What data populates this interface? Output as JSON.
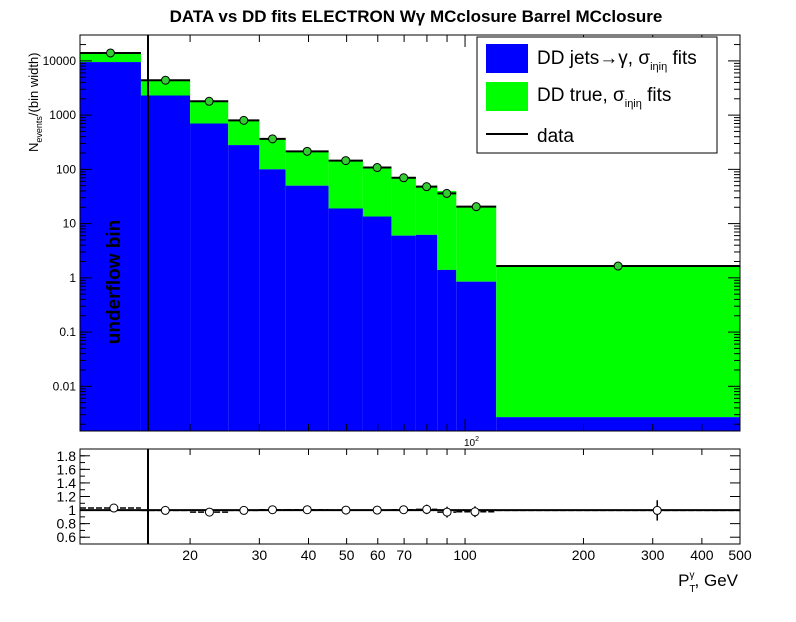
{
  "title": "DATA vs DD fits ELECTRON Wγ  MCclosure Barrel  MCclosure",
  "colors": {
    "jets": "#0000ff",
    "true": "#00ff00",
    "data": "#000000",
    "marker": "#33cc33"
  },
  "chart_data": [
    {
      "type": "bar",
      "stacked": true,
      "log_x": true,
      "log_y": true,
      "ylabel": "N_events/(bin width)",
      "ylabel_main": "N",
      "ylabel_sub": "events",
      "ylabel_tail": "/(bin width)",
      "xlim": [
        10.5,
        500
      ],
      "ylim": [
        0.0015,
        30000
      ],
      "x_tick_label": "10²",
      "x_tick_label_base": "10",
      "x_tick_label_exp": "2",
      "y_ticks": [
        {
          "v": 10000,
          "label": "10000"
        },
        {
          "v": 1000,
          "label": "1000"
        },
        {
          "v": 100,
          "label": "100"
        },
        {
          "v": 10,
          "label": "10"
        },
        {
          "v": 1,
          "label": "1"
        },
        {
          "v": 0.1,
          "label": "0.1"
        },
        {
          "v": 0.01,
          "label": "0.01"
        }
      ],
      "annotation": "underflow bin",
      "bins": [
        {
          "lo": 10.5,
          "hi": 15,
          "jets": 9500,
          "total": 13500,
          "data": 14000
        },
        {
          "lo": 15,
          "hi": 20,
          "jets": 2300,
          "total": 4500,
          "data": 4400
        },
        {
          "lo": 20,
          "hi": 25,
          "jets": 700,
          "total": 1850,
          "data": 1800
        },
        {
          "lo": 25,
          "hi": 30,
          "jets": 280,
          "total": 820,
          "data": 800
        },
        {
          "lo": 30,
          "hi": 35,
          "jets": 100,
          "total": 370,
          "data": 365
        },
        {
          "lo": 35,
          "hi": 45,
          "jets": 50,
          "total": 210,
          "data": 215
        },
        {
          "lo": 45,
          "hi": 55,
          "jets": 19,
          "total": 145,
          "data": 145
        },
        {
          "lo": 55,
          "hi": 65,
          "jets": 13.5,
          "total": 108,
          "data": 108
        },
        {
          "lo": 65,
          "hi": 75,
          "jets": 6,
          "total": 72,
          "data": 70
        },
        {
          "lo": 75,
          "hi": 85,
          "jets": 6.2,
          "total": 50,
          "data": 48
        },
        {
          "lo": 85,
          "hi": 95,
          "jets": 1.4,
          "total": 40,
          "data": 36
        },
        {
          "lo": 95,
          "hi": 120,
          "jets": 0.85,
          "total": 21,
          "data": 20.5
        },
        {
          "lo": 120,
          "hi": 500,
          "jets": 0.0027,
          "total": 1.65,
          "data": 1.65
        }
      ],
      "legend": [
        {
          "key": "jets",
          "label": "DD jets→γ, σ",
          "sub": "iηiη",
          "tail": " fits"
        },
        {
          "key": "true",
          "label": "DD true,  σ",
          "sub": "iηiη",
          "tail": " fits"
        },
        {
          "key": "data",
          "label": "data"
        }
      ],
      "legend_position": "top-right"
    },
    {
      "type": "scatter",
      "log_x": true,
      "xlim": [
        10.5,
        500
      ],
      "ylim": [
        0.5,
        1.9
      ],
      "xlabel": "P_T^γ, GeV",
      "xlabel_main": "P",
      "xlabel_sub": "T",
      "xlabel_sup": "γ",
      "xlabel_tail": ", GeV",
      "x_ticks": [
        {
          "v": 20,
          "label": "20"
        },
        {
          "v": 30,
          "label": "30"
        },
        {
          "v": 40,
          "label": "40"
        },
        {
          "v": 50,
          "label": "50"
        },
        {
          "v": 60,
          "label": "60"
        },
        {
          "v": 70,
          "label": "70"
        },
        {
          "v": 100,
          "label": "100"
        },
        {
          "v": 200,
          "label": "200"
        },
        {
          "v": 300,
          "label": "300"
        },
        {
          "v": 400,
          "label": "400"
        },
        {
          "v": 500,
          "label": "500"
        }
      ],
      "y_ticks": [
        {
          "v": 0.6,
          "label": "0.6"
        },
        {
          "v": 0.8,
          "label": "0.8"
        },
        {
          "v": 1.0,
          "label": "1"
        },
        {
          "v": 1.2,
          "label": "1.2"
        },
        {
          "v": 1.4,
          "label": "1.4"
        },
        {
          "v": 1.6,
          "label": "1.6"
        },
        {
          "v": 1.8,
          "label": "1.8"
        }
      ],
      "reference_line": 1.0,
      "points": [
        {
          "lo": 10.5,
          "hi": 15,
          "x": 12.8,
          "y": 1.03,
          "err": 0.01
        },
        {
          "lo": 15,
          "hi": 20,
          "x": 17.3,
          "y": 0.995,
          "err": 0.02
        },
        {
          "lo": 20,
          "hi": 25,
          "x": 22.4,
          "y": 0.97,
          "err": 0.03
        },
        {
          "lo": 25,
          "hi": 30,
          "x": 27.4,
          "y": 0.995,
          "err": 0.035
        },
        {
          "lo": 30,
          "hi": 35,
          "x": 32.4,
          "y": 1.005,
          "err": 0.04
        },
        {
          "lo": 35,
          "hi": 45,
          "x": 39.7,
          "y": 1.005,
          "err": 0.04
        },
        {
          "lo": 45,
          "hi": 55,
          "x": 49.8,
          "y": 1.0,
          "err": 0.045
        },
        {
          "lo": 55,
          "hi": 65,
          "x": 59.8,
          "y": 1.0,
          "err": 0.05
        },
        {
          "lo": 65,
          "hi": 75,
          "x": 69.8,
          "y": 1.005,
          "err": 0.06
        },
        {
          "lo": 75,
          "hi": 85,
          "x": 79.9,
          "y": 1.01,
          "err": 0.07
        },
        {
          "lo": 85,
          "hi": 95,
          "x": 90,
          "y": 0.97,
          "err": 0.08
        },
        {
          "lo": 95,
          "hi": 120,
          "x": 106,
          "y": 0.975,
          "err": 0.08
        },
        {
          "lo": 120,
          "hi": 500,
          "x": 308,
          "y": 0.995,
          "err": 0.15
        }
      ]
    }
  ]
}
